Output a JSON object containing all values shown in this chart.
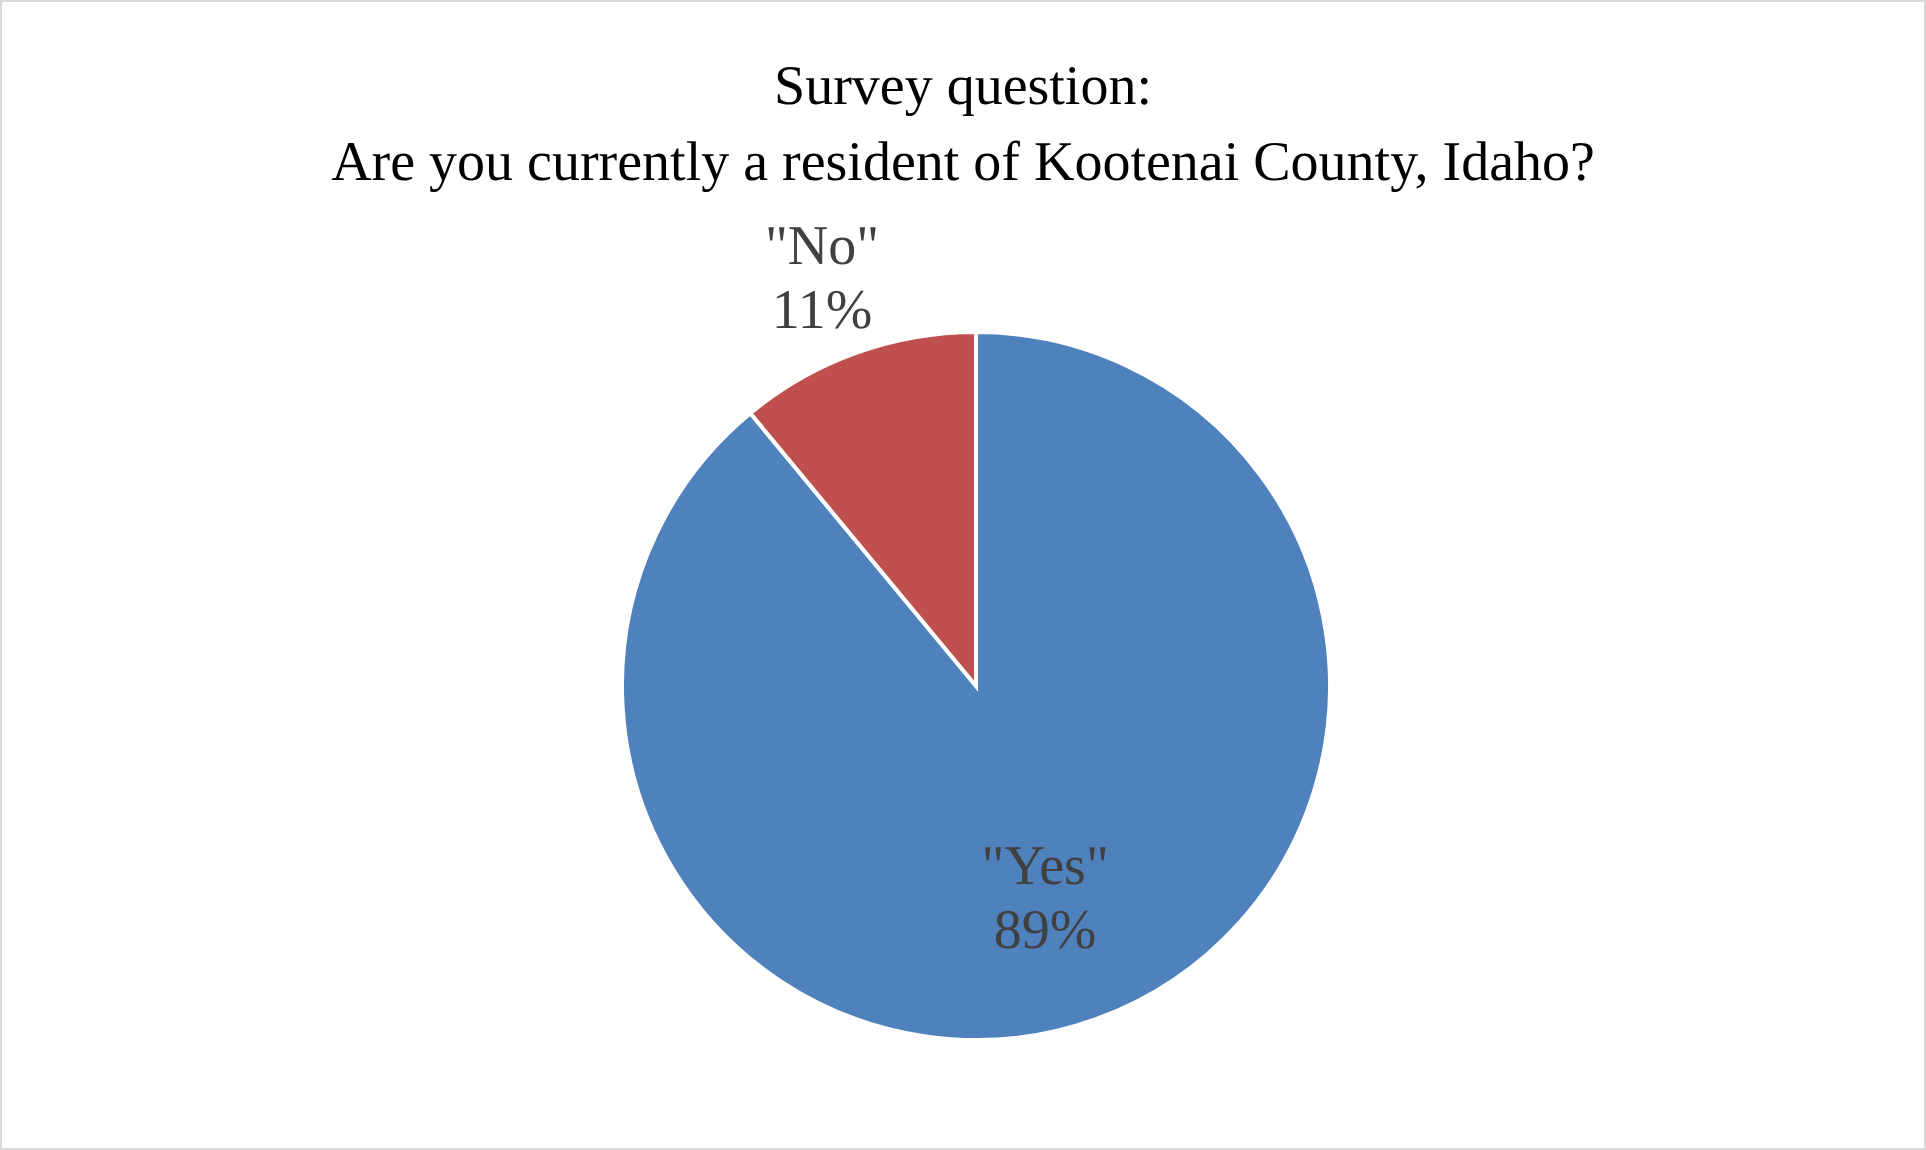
{
  "chart_data": {
    "type": "pie",
    "title": "Survey question:\nAre you currently a resident of Kootenai County, Idaho?",
    "categories": [
      "\"Yes\"",
      "\"No\""
    ],
    "values": [
      89,
      11
    ],
    "colors": [
      "#4f81bd",
      "#c0504d"
    ],
    "value_labels": [
      "89%",
      "11%"
    ],
    "legend": false
  }
}
